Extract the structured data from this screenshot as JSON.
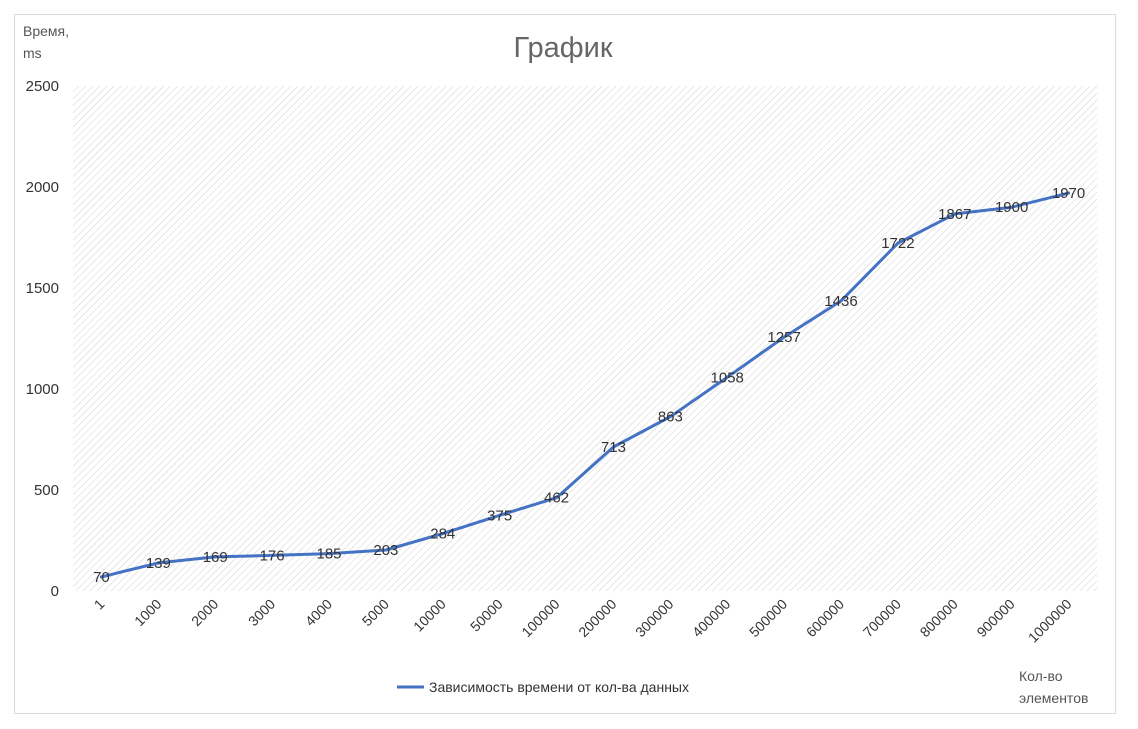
{
  "chart_data": {
    "type": "line",
    "title": "График",
    "ylabel": [
      "Время,",
      "ms"
    ],
    "xlabel": [
      "Кол-во",
      "элементов"
    ],
    "categories": [
      "1",
      "1000",
      "2000",
      "3000",
      "4000",
      "5000",
      "10000",
      "50000",
      "100000",
      "200000",
      "300000",
      "400000",
      "500000",
      "600000",
      "700000",
      "800000",
      "900000",
      "1000000"
    ],
    "series": [
      {
        "name": "Зависимость времени от кол-ва данных",
        "values": [
          70,
          139,
          169,
          176,
          185,
          203,
          284,
          375,
          462,
          713,
          863,
          1058,
          1257,
          1436,
          1722,
          1867,
          1900,
          1970
        ],
        "color": "#4472c4"
      }
    ],
    "ylim": [
      0,
      2500
    ],
    "yticks": [
      0,
      500,
      1000,
      1500,
      2000,
      2500
    ],
    "grid": "hatched plot area",
    "legend": "bottom"
  }
}
